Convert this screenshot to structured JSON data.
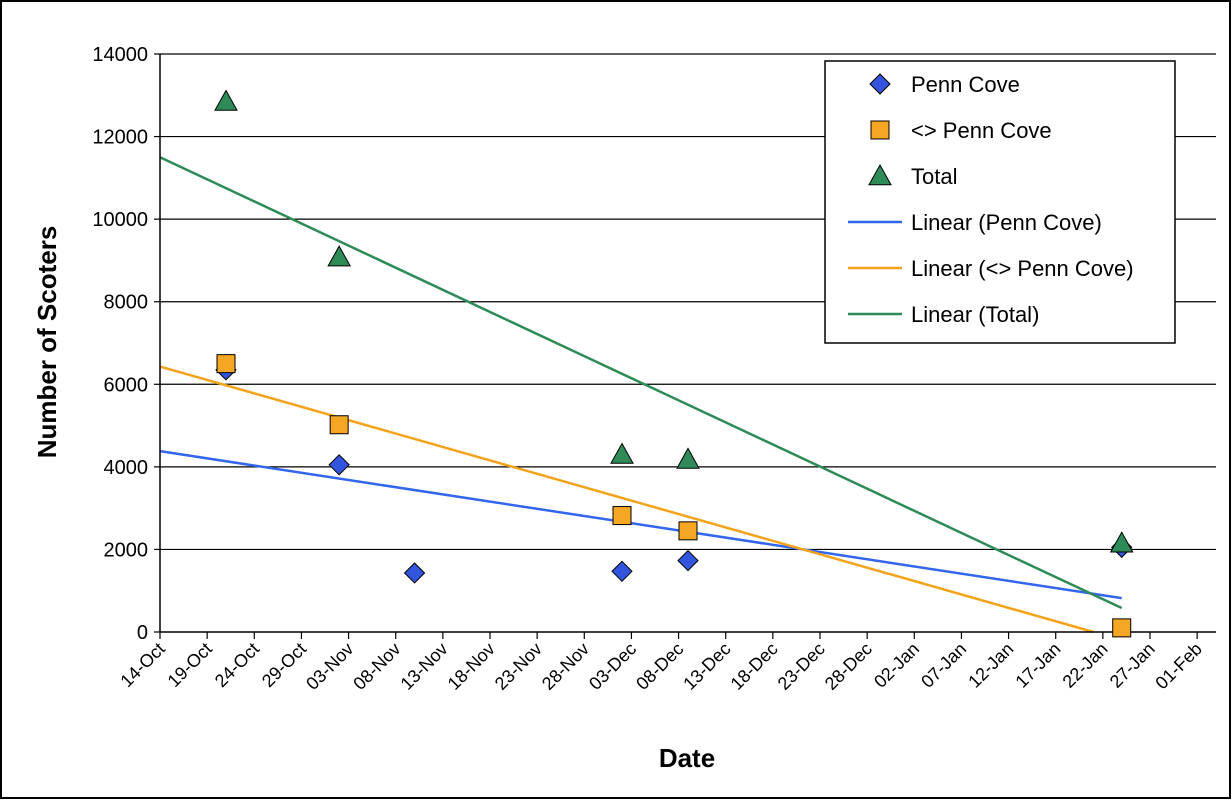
{
  "chart_data": {
    "type": "scatter",
    "title": "",
    "xlabel": "Date",
    "ylabel": "Number of Scoters",
    "ylim": [
      0,
      14000
    ],
    "yticks": [
      "0",
      "2000",
      "4000",
      "6000",
      "8000",
      "10000",
      "12000",
      "14000"
    ],
    "xlim": [
      "14-Oct",
      "03-Feb"
    ],
    "xtick_labels": [
      "14-Oct",
      "19-Oct",
      "24-Oct",
      "29-Oct",
      "03-Nov",
      "08-Nov",
      "13-Nov",
      "18-Nov",
      "23-Nov",
      "28-Nov",
      "03-Dec",
      "08-Dec",
      "13-Dec",
      "18-Dec",
      "23-Dec",
      "28-Dec",
      "02-Jan",
      "07-Jan",
      "12-Jan",
      "17-Jan",
      "22-Jan",
      "27-Jan",
      "01-Feb"
    ],
    "grid": "horizontal major gridlines",
    "legend_position": "top-right",
    "series": [
      {
        "name": "Penn Cove",
        "marker": "diamond",
        "color": "#3355dd",
        "points": [
          {
            "x": "21-Oct",
            "y": 6350
          },
          {
            "x": "02-Nov",
            "y": 4050
          },
          {
            "x": "10-Nov",
            "y": 1430
          },
          {
            "x": "02-Dec",
            "y": 1470
          },
          {
            "x": "09-Dec",
            "y": 1730
          },
          {
            "x": "24-Jan",
            "y": 2050
          }
        ]
      },
      {
        "name": "<> Penn Cove",
        "marker": "square",
        "color": "#f5a623",
        "points": [
          {
            "x": "21-Oct",
            "y": 6500
          },
          {
            "x": "02-Nov",
            "y": 5020
          },
          {
            "x": "02-Dec",
            "y": 2820
          },
          {
            "x": "09-Dec",
            "y": 2450
          },
          {
            "x": "24-Jan",
            "y": 100
          }
        ]
      },
      {
        "name": "Total",
        "marker": "triangle",
        "color": "#2e8b57",
        "points": [
          {
            "x": "21-Oct",
            "y": 12850
          },
          {
            "x": "02-Nov",
            "y": 9080
          },
          {
            "x": "02-Dec",
            "y": 4300
          },
          {
            "x": "09-Dec",
            "y": 4180
          },
          {
            "x": "24-Jan",
            "y": 2150
          }
        ]
      }
    ],
    "trendlines": [
      {
        "name": "Linear (Penn Cove)",
        "color": "#3366ee",
        "from": {
          "x": "14-Oct",
          "y": 4380
        },
        "to": {
          "x": "24-Jan",
          "y": 820
        }
      },
      {
        "name": "Linear (<> Penn Cove)",
        "color": "#f5a21b",
        "from": {
          "x": "14-Oct",
          "y": 6430
        },
        "to": {
          "x": "21-Jan",
          "y": 0
        }
      },
      {
        "name": "Linear (Total)",
        "color": "#2e8b57",
        "from": {
          "x": "14-Oct",
          "y": 11500
        },
        "to": {
          "x": "24-Jan",
          "y": 580
        }
      }
    ]
  }
}
